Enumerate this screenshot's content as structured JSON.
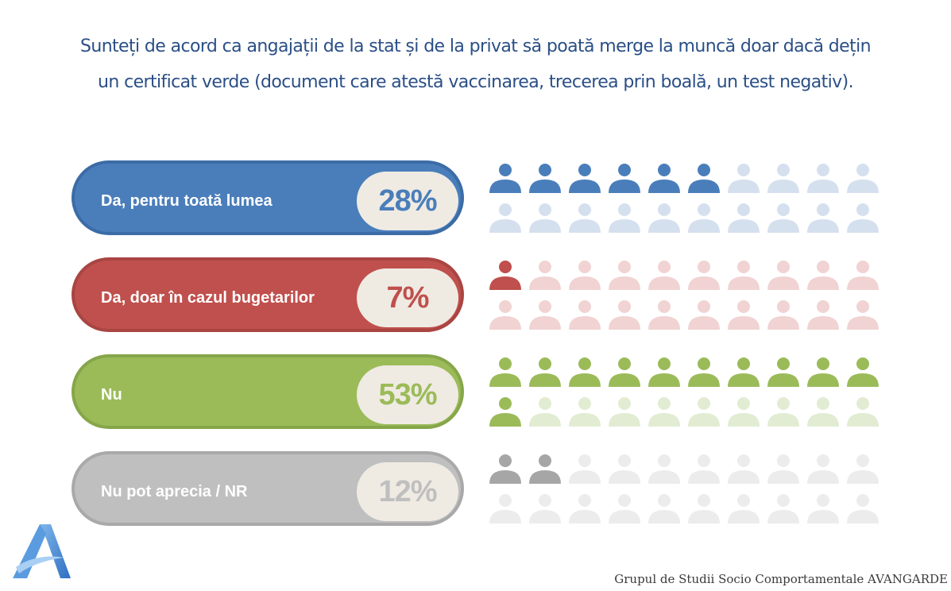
{
  "title": {
    "line1": "Sunteți de acord ca angajații de la stat și de la privat să poată merge la muncă doar dacă dețin",
    "line2": "un certificat verde (document care atestă vaccinarea, trecerea prin boală, un test negativ)."
  },
  "chart_data": {
    "type": "bar",
    "categories": [
      "Da, pentru toată lumea",
      "Da, doar în cazul bugetarilor",
      "Nu",
      "Nu pot aprecia / NR"
    ],
    "values": [
      28,
      7,
      53,
      12
    ],
    "value_labels": [
      "28%",
      "7%",
      "53%",
      "12%"
    ],
    "unit": "%",
    "icons_per_row": 20,
    "colors": {
      "pill": [
        "#4a7ebb",
        "#c0504d",
        "#9bbb59",
        "#bfbfbf"
      ],
      "pill_border": [
        "#3c6ca6",
        "#a94542",
        "#86a64a",
        "#a9a9a9"
      ],
      "icon_filled": [
        "#4a7ebb",
        "#c0504d",
        "#9bbb59",
        "#a6a6a6"
      ],
      "icon_faded": [
        "#d5e0ef",
        "#f0d3d2",
        "#e2ecd3",
        "#ececec"
      ],
      "percent_text": [
        "#4a7ebb",
        "#c0504d",
        "#9bbb59",
        "#bfbfbf"
      ],
      "percent_bg": "#efebe3"
    }
  },
  "footer": {
    "source": "Grupul de Studii Socio Comportamentale AVANGARDE"
  },
  "logo": {
    "icon": "avangarde-a-logo",
    "letter": "A"
  }
}
